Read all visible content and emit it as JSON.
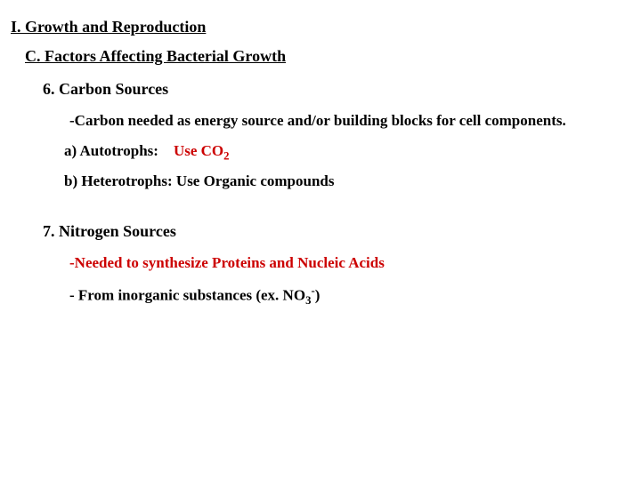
{
  "heading1": "I. Growth and Reproduction",
  "heading2": "C. Factors Affecting Bacterial Growth",
  "section6": {
    "title": "6. Carbon Sources",
    "para": "-Carbon needed as energy source and/or building blocks for cell components.",
    "a_label": "a) Autotrophs:",
    "a_value_prefix": "Use CO",
    "a_value_sub": "2",
    "b": "b) Heterotrophs: Use Organic compounds"
  },
  "section7": {
    "title": "7. Nitrogen Sources",
    "para1": "-Needed to synthesize Proteins and Nucleic Acids",
    "para2_prefix": "- From inorganic substances (ex. NO",
    "para2_sub": "3",
    "para2_sup": "-",
    "para2_suffix": ")"
  },
  "colors": {
    "red": "#cc0000",
    "text": "#000000",
    "background": "#ffffff"
  }
}
